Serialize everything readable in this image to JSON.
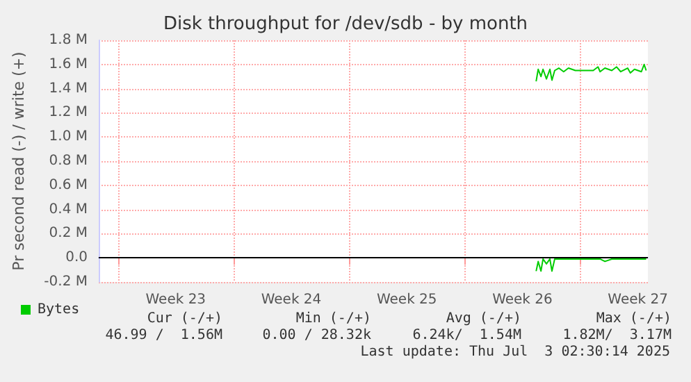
{
  "chart_data": {
    "type": "line",
    "title": "Disk throughput for /dev/sdb - by month",
    "ylabel": "Pr second read (-) / write (+)",
    "xlim": [
      "2025-05-30T20:00",
      "2025-07-03T02:30"
    ],
    "xticks": [
      {
        "value": "2025-06-01T00:00",
        "label": null
      },
      {
        "value": "2025-06-04T12:00",
        "label": "Week 23"
      },
      {
        "value": "2025-06-08T00:00",
        "label": null
      },
      {
        "value": "2025-06-11T12:00",
        "label": "Week 24"
      },
      {
        "value": "2025-06-15T00:00",
        "label": null
      },
      {
        "value": "2025-06-18T12:00",
        "label": "Week 25"
      },
      {
        "value": "2025-06-22T00:00",
        "label": null
      },
      {
        "value": "2025-06-25T12:00",
        "label": "Week 26"
      },
      {
        "value": "2025-06-29T00:00",
        "label": null
      },
      {
        "value": "2025-07-02T12:00",
        "label": "Week 27"
      }
    ],
    "ylim": [
      -0.2,
      1.8
    ],
    "yticks": [
      {
        "value": -0.2,
        "label": "-0.2 M"
      },
      {
        "value": 0,
        "label": "0.0"
      },
      {
        "value": 0.2,
        "label": "0.2 M"
      },
      {
        "value": 0.4,
        "label": "0.4 M"
      },
      {
        "value": 0.6,
        "label": "0.6 M"
      },
      {
        "value": 0.8,
        "label": "0.8 M"
      },
      {
        "value": 1.0,
        "label": "1.0 M"
      },
      {
        "value": 1.2,
        "label": "1.2 M"
      },
      {
        "value": 1.4,
        "label": "1.4 M"
      },
      {
        "value": 1.6,
        "label": "1.6 M"
      },
      {
        "value": 1.8,
        "label": "1.8 M"
      }
    ],
    "x": [
      "2025-06-26T08:00",
      "2025-06-26T11:00",
      "2025-06-26T15:00",
      "2025-06-26T18:00",
      "2025-06-26T23:00",
      "2025-06-27T04:00",
      "2025-06-27T07:00",
      "2025-06-27T11:00",
      "2025-06-27T17:00",
      "2025-06-28T00:00",
      "2025-06-28T07:00",
      "2025-06-28T17:00",
      "2025-06-29T06:00",
      "2025-06-29T19:00",
      "2025-06-30T02:00",
      "2025-06-30T05:00",
      "2025-06-30T12:00",
      "2025-06-30T22:00",
      "2025-07-01T05:00",
      "2025-07-01T11:00",
      "2025-07-01T21:00",
      "2025-07-02T01:00",
      "2025-07-02T07:00",
      "2025-07-02T17:00",
      "2025-07-02T21:00",
      "2025-07-03T00:00"
    ],
    "series": [
      {
        "name": "Bytes",
        "color": "#00cc00",
        "values": [
          1.46,
          1.56,
          1.5,
          1.56,
          1.48,
          1.56,
          1.47,
          1.55,
          1.57,
          1.54,
          1.57,
          1.55,
          1.55,
          1.55,
          1.58,
          1.54,
          1.57,
          1.55,
          1.58,
          1.54,
          1.57,
          1.53,
          1.56,
          1.54,
          1.6,
          1.55
        ]
      },
      {
        "color": "#00cc00",
        "values": [
          -0.11,
          -0.03,
          -0.11,
          -0.01,
          -0.05,
          -0.01,
          -0.11,
          -0.01,
          -0.01,
          -0.01,
          -0.01,
          -0.01,
          -0.01,
          -0.01,
          -0.01,
          -0.01,
          -0.03,
          -0.01,
          -0.01,
          -0.01,
          -0.01,
          -0.01,
          -0.01,
          -0.01,
          -0.01,
          -0.01
        ]
      }
    ],
    "ref_lines": [
      {
        "axis": "y",
        "value": 0,
        "color": "#000000"
      }
    ],
    "grid": true,
    "legend": "bottom left",
    "marker": "none",
    "line_style": "solid",
    "annotations": [
      "Cur (-/+)",
      "Min (-/+)",
      "Avg (-/+)",
      "Max (-/+)",
      "46.99 /  1.56M",
      "0.00 / 28.32k",
      "6.24k/  1.54M",
      "1.82M/  3.17M",
      "Last update: Thu Jul  3 02:30:14 2025"
    ]
  }
}
